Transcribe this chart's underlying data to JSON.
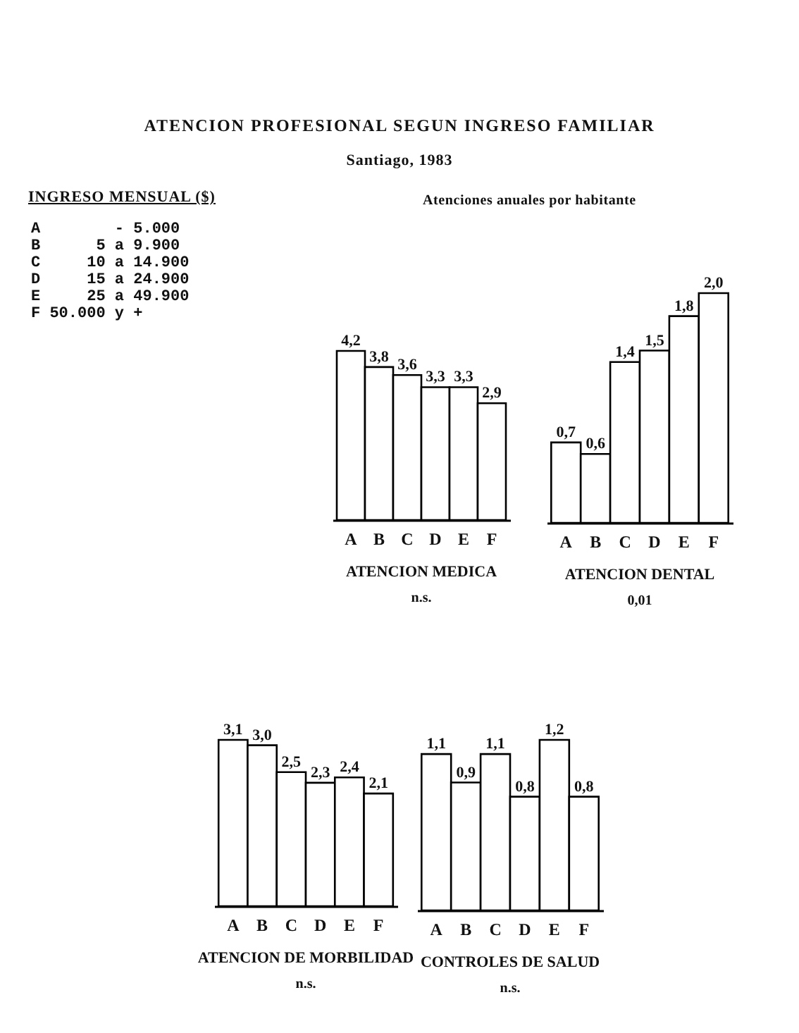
{
  "chart_data": [
    {
      "type": "other",
      "title": "ATENCION PROFESIONAL SEGUN INGRESO FAMILIAR",
      "subtitle": "Santiago, 1983",
      "legend_title": "INGRESO MENSUAL ($)",
      "ylabel": "Atenciones anuales por habitante",
      "annotations": [
        "A        - 5.000",
        "B      5 a 9.900",
        "C     10 a 14.900",
        "D     15 a 24.900",
        "E     25 a 49.900",
        "F 50.000 y +"
      ]
    },
    {
      "type": "bar",
      "categories": [
        "A",
        "B",
        "C",
        "D",
        "E",
        "F"
      ],
      "values": [
        4.2,
        3.8,
        3.6,
        3.3,
        3.3,
        2.9
      ],
      "value_labels": [
        "4,2",
        "3,8",
        "3,6",
        "3,3",
        "3,3",
        "2,9"
      ],
      "color": "#ffffff",
      "xlabel": "ATENCION MEDICA",
      "annotations": [
        "n.s."
      ],
      "tick_labels": "x"
    },
    {
      "type": "bar",
      "categories": [
        "A",
        "B",
        "C",
        "D",
        "E",
        "F"
      ],
      "values": [
        0.7,
        0.6,
        1.4,
        1.5,
        1.8,
        2.0
      ],
      "value_labels": [
        "0,7",
        "0,6",
        "1,4",
        "1,5",
        "1,8",
        "2,0"
      ],
      "color": "#ffffff",
      "xlabel": "ATENCION DENTAL",
      "annotations": [
        "0,01"
      ],
      "tick_labels": "x"
    },
    {
      "type": "bar",
      "categories": [
        "A",
        "B",
        "C",
        "D",
        "E",
        "F"
      ],
      "values": [
        3.1,
        3.0,
        2.5,
        2.3,
        2.4,
        2.1
      ],
      "value_labels": [
        "3,1",
        "3,0",
        "2,5",
        "2,3",
        "2,4",
        "2,1"
      ],
      "color": "#ffffff",
      "xlabel": "ATENCION DE MORBILIDAD",
      "annotations": [
        "n.s."
      ],
      "tick_labels": "x"
    },
    {
      "type": "bar",
      "categories": [
        "A",
        "B",
        "C",
        "D",
        "E",
        "F"
      ],
      "values": [
        1.1,
        0.9,
        1.1,
        0.8,
        1.2,
        0.8
      ],
      "value_labels": [
        "1,1",
        "0,9",
        "1,1",
        "0,8",
        "1,2",
        "0,8"
      ],
      "color": "#ffffff",
      "xlabel": "CONTROLES DE SALUD",
      "annotations": [
        "n.s."
      ],
      "tick_labels": "x"
    }
  ]
}
